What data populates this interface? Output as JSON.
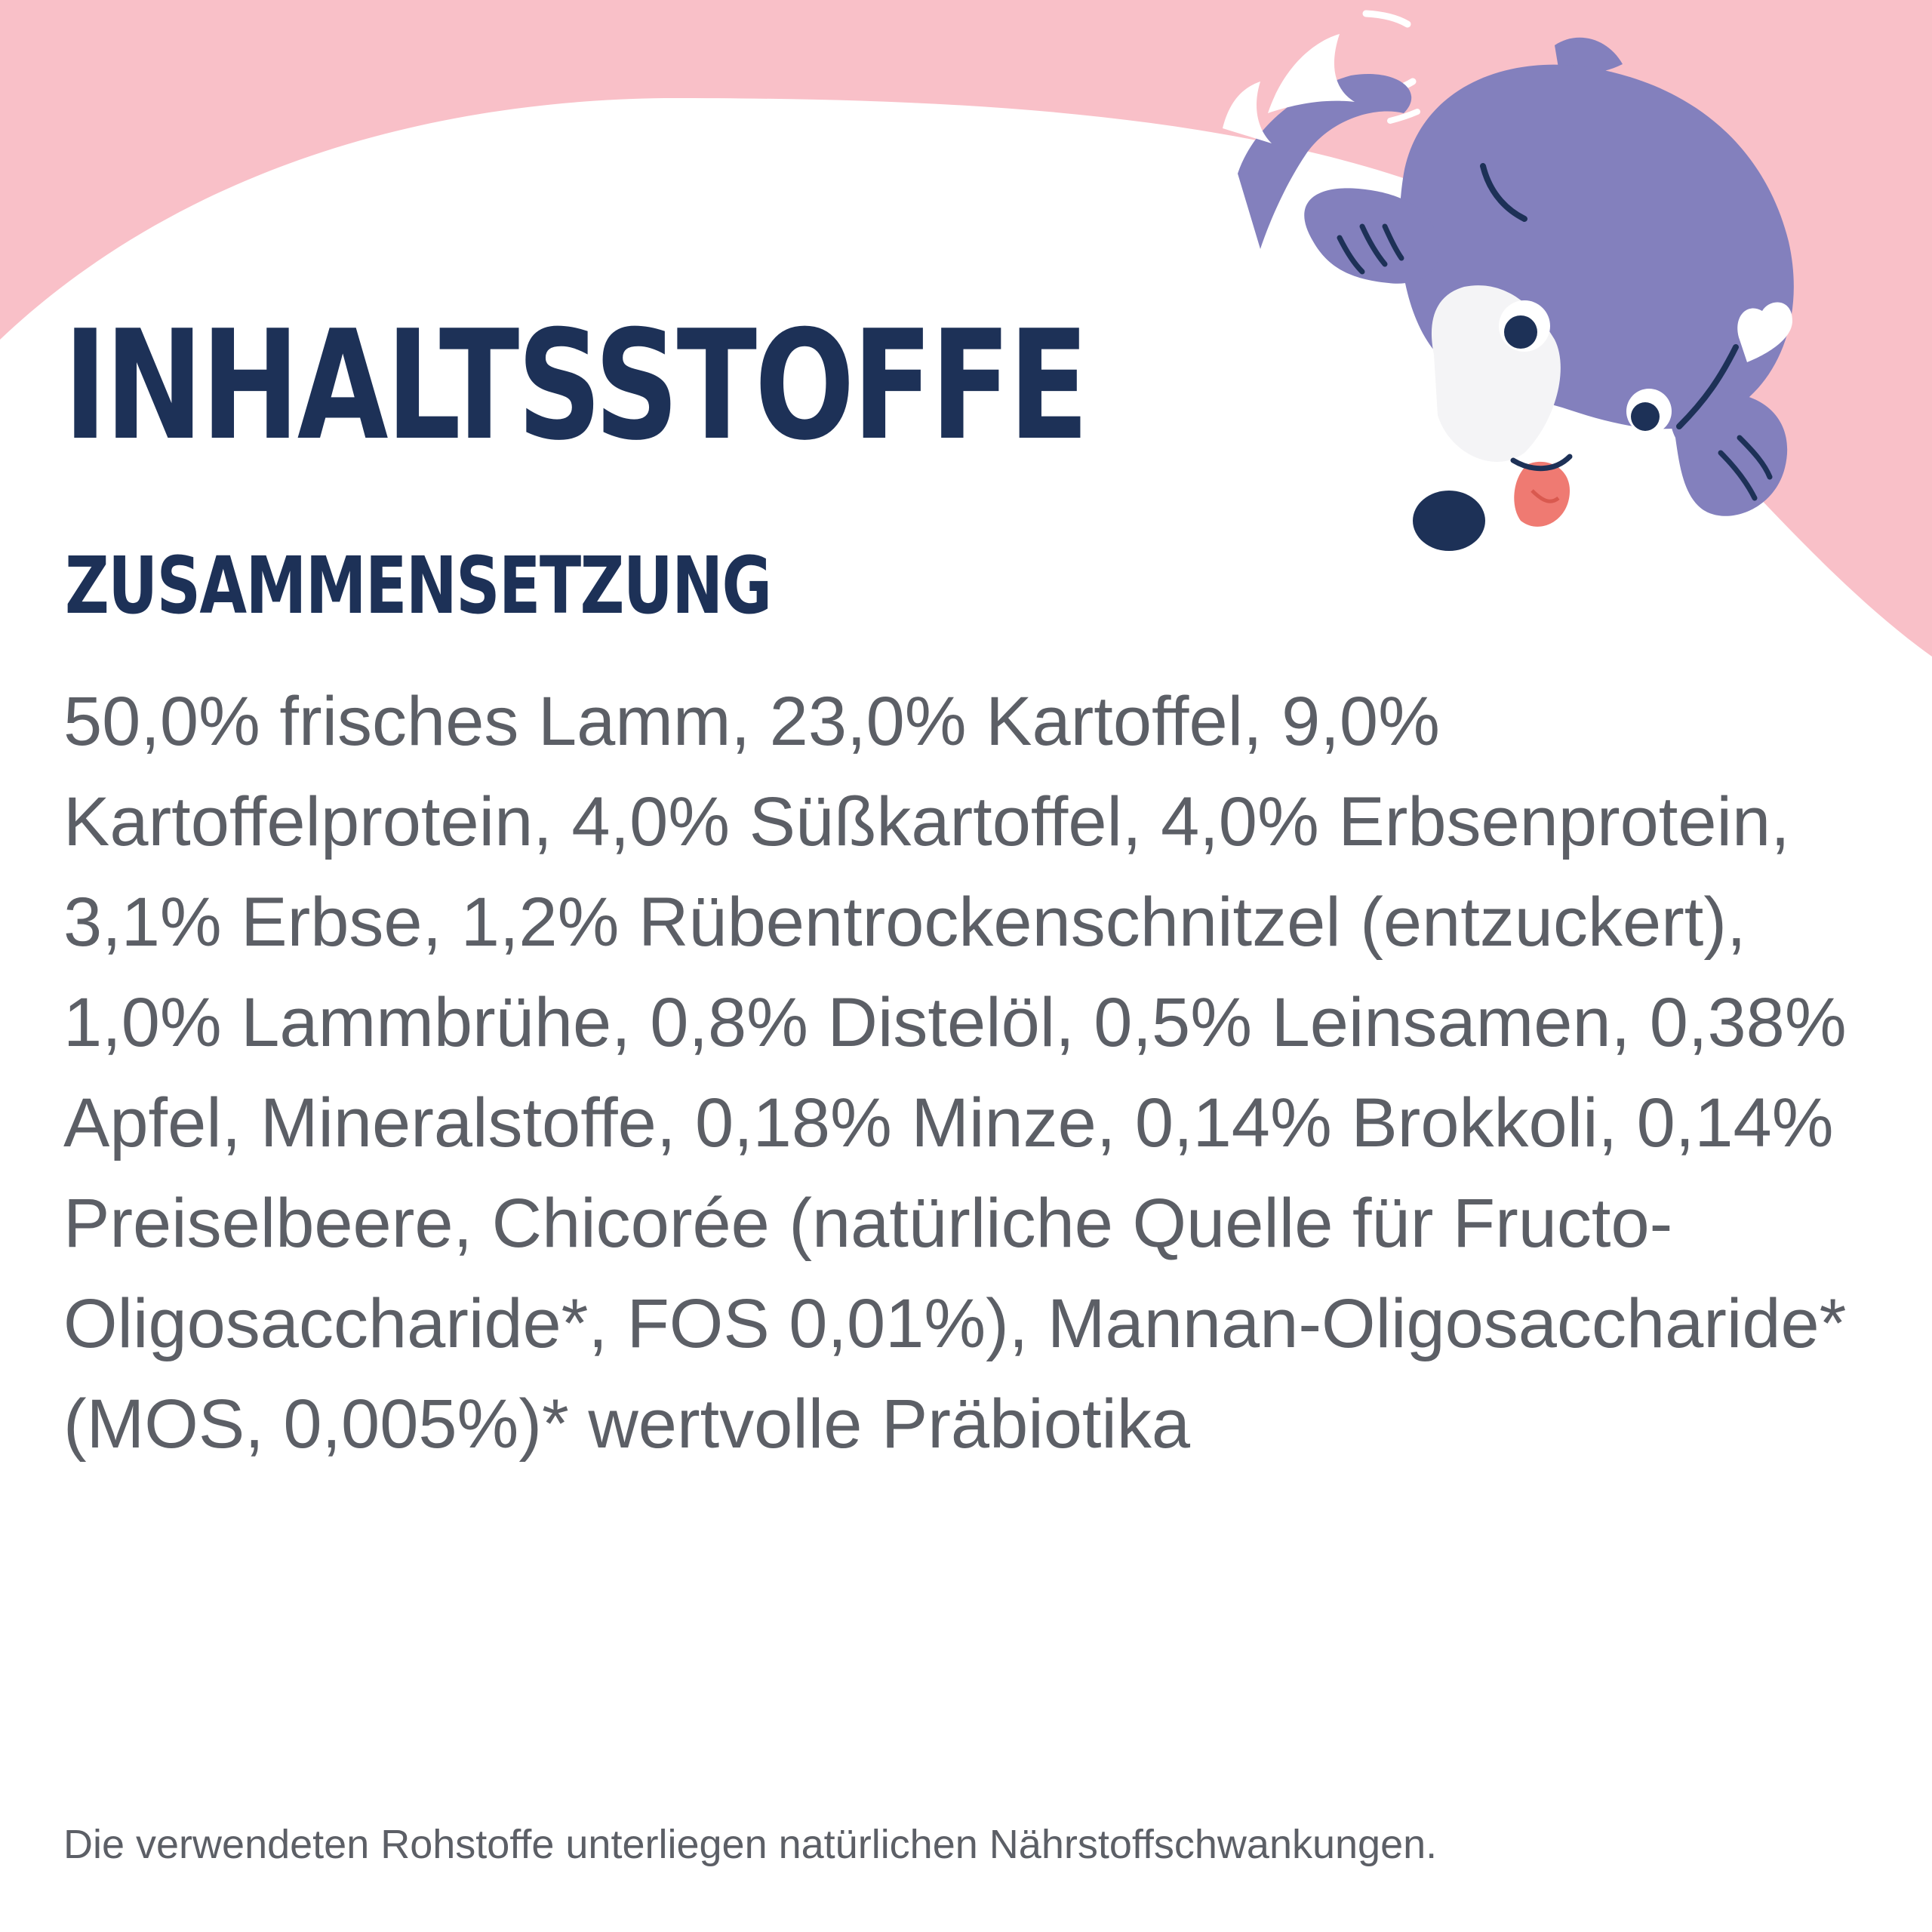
{
  "colors": {
    "background_pink": "#f9c0c8",
    "panel_white": "#ffffff",
    "title_navy": "#1d3157",
    "body_gray": "#5c5f66",
    "dog_purple": "#8380bd",
    "dog_tongue": "#ef7a72"
  },
  "illustration": {
    "icon": "dog-mascot-icon"
  },
  "heading": {
    "title": "INHALTSSTOFFE",
    "subtitle": "ZUSAMMENSETZUNG"
  },
  "composition": {
    "text": "50,0% frisches Lamm, 23,0% Kartoffel, 9,0% Kartoffelprotein, 4,0% Süßkartoffel, 4,0% Erbsenprotein, 3,1% Erbse, 1,2% Rübentrockenschnitzel (entzuckert), 1,0% Lammbrühe, 0,8% Distelöl, 0,5% Leinsamen, 0,38% Apfel, Mineralstoffe, 0,18% Minze, 0,14% Brokkoli, 0,14% Preiselbeere, Chicorée (natürliche Quelle für Fructo-Oligosaccharide*, FOS 0,01%), Mannan-Oligosaccharide* (MOS, 0,005%)* wertvolle Präbiotika"
  },
  "footnote": "Die verwendeten Rohstoffe unterliegen natürlichen Nährstoffschwankungen."
}
